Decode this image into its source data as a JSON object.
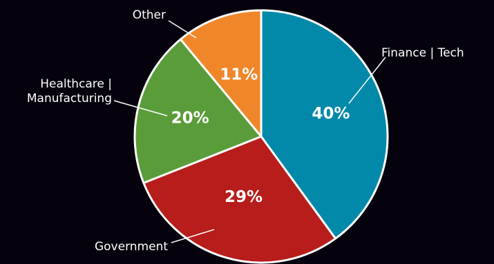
{
  "chart_data": {
    "type": "pie",
    "title": "",
    "categories": [
      "Finance | Tech",
      "Government",
      "Healthcare | Manufacturing",
      "Other"
    ],
    "values": [
      40,
      29,
      20,
      11
    ],
    "value_labels": [
      "40%",
      "29%",
      "20%",
      "11%"
    ],
    "category_label_lines": [
      [
        "Finance | Tech"
      ],
      [
        "Government"
      ],
      [
        "Healthcare |",
        "Manufacturing"
      ],
      [
        "Other"
      ]
    ],
    "colors": [
      "#0289aa",
      "#b71d1b",
      "#5a9c3a",
      "#f0862a"
    ],
    "start_angle": "12 o'clock, clockwise",
    "background": "#06020d"
  }
}
